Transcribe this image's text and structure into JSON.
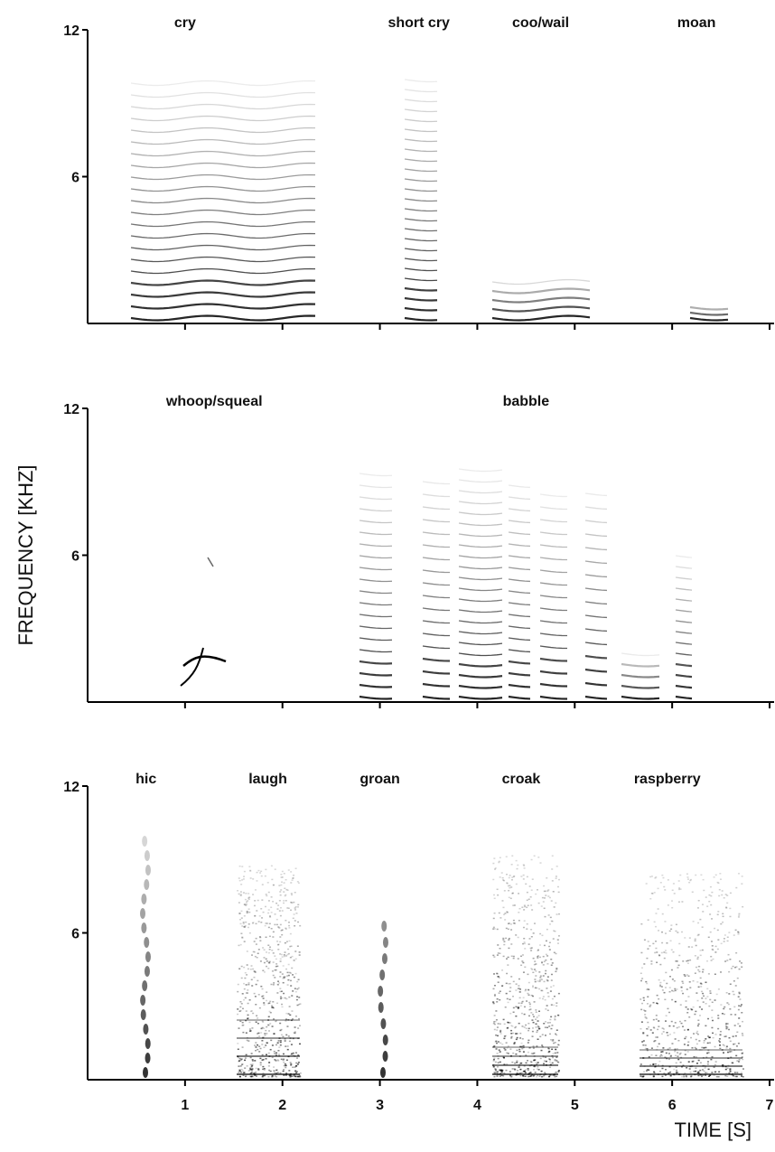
{
  "chart_data": [
    {
      "type": "spectrogram",
      "annotations": [
        {
          "text": "cry",
          "x": 1.0
        },
        {
          "text": "short cry",
          "x": 3.4
        },
        {
          "text": "coo/wail",
          "x": 4.65
        },
        {
          "text": "moan",
          "x": 6.25
        }
      ],
      "xlim": [
        0,
        7
      ],
      "xticks": [
        1,
        2,
        3,
        4,
        5,
        6,
        7
      ],
      "show_xtick_labels": false,
      "ylim": [
        0,
        12
      ],
      "yticks": [
        6,
        12
      ]
    },
    {
      "type": "spectrogram",
      "ylabel": "FREQUENCY [KHZ]",
      "annotations": [
        {
          "text": "whoop/squeal",
          "x": 1.3
        },
        {
          "text": "babble",
          "x": 4.5
        }
      ],
      "xlim": [
        0,
        7
      ],
      "xticks": [
        1,
        2,
        3,
        4,
        5,
        6,
        7
      ],
      "show_xtick_labels": false,
      "ylim": [
        0,
        12
      ],
      "yticks": [
        6,
        12
      ]
    },
    {
      "type": "spectrogram",
      "xlabel": "TIME [S]",
      "annotations": [
        {
          "text": "hic",
          "x": 0.6
        },
        {
          "text": "laugh",
          "x": 1.85
        },
        {
          "text": "groan",
          "x": 3.0
        },
        {
          "text": "croak",
          "x": 4.45
        },
        {
          "text": "raspberry",
          "x": 5.95
        }
      ],
      "xlim": [
        0,
        7
      ],
      "xticks": [
        1,
        2,
        3,
        4,
        5,
        6,
        7
      ],
      "show_xtick_labels": true,
      "ylim": [
        0,
        12
      ],
      "yticks": [
        6,
        12
      ]
    }
  ]
}
